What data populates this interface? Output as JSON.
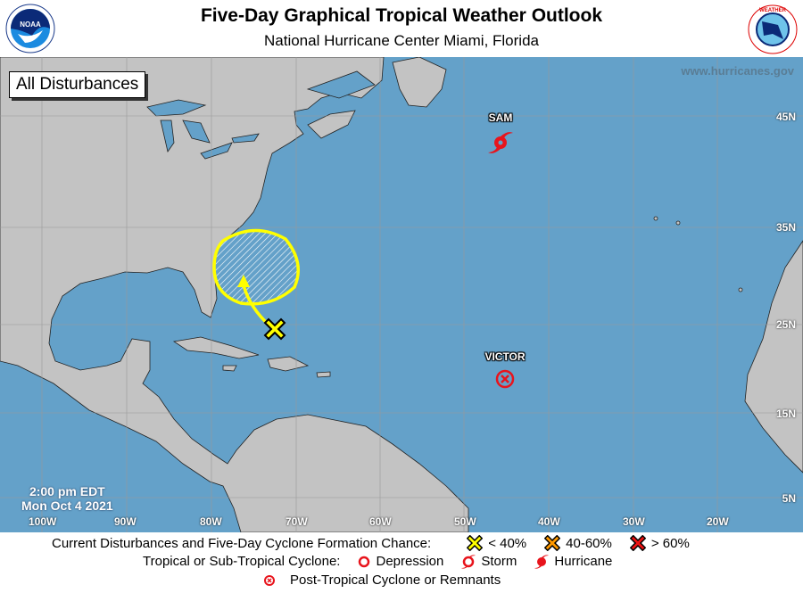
{
  "header": {
    "title": "Five-Day Graphical Tropical Weather Outlook",
    "subtitle": "National Hurricane Center  Miami, Florida",
    "left_logo": "NOAA",
    "right_logo": "NATIONAL WEATHER SERVICE"
  },
  "map": {
    "view_label": "All Disturbances",
    "website": "www.hurricanes.gov",
    "timestamp_time": "2:00 pm EDT",
    "timestamp_date": "Mon Oct 4 2021",
    "longitudes": [
      "100W",
      "90W",
      "80W",
      "70W",
      "60W",
      "50W",
      "40W",
      "30W",
      "20W"
    ],
    "latitudes": [
      "45N",
      "35N",
      "25N",
      "15N",
      "5N"
    ],
    "colors": {
      "ocean": "#64a1c9",
      "land": "#c3c3c3",
      "disturbance_low": "#ffff00",
      "storm_red": "#e8141c"
    },
    "systems": [
      {
        "name": "SAM",
        "type": "hurricane"
      },
      {
        "name": "VICTOR",
        "type": "post-tropical"
      }
    ],
    "disturbances": [
      {
        "formation_chance": "< 40%",
        "color": "#ffff00"
      }
    ]
  },
  "legend": {
    "row1_label": "Current Disturbances and Five-Day Cyclone Formation Chance:",
    "low": "< 40%",
    "medium": "40-60%",
    "high": "> 60%",
    "row2_label": "Tropical or Sub-Tropical Cyclone:",
    "depression": "Depression",
    "storm": "Storm",
    "hurricane": "Hurricane",
    "post_tropical": "Post-Tropical Cyclone or Remnants"
  }
}
